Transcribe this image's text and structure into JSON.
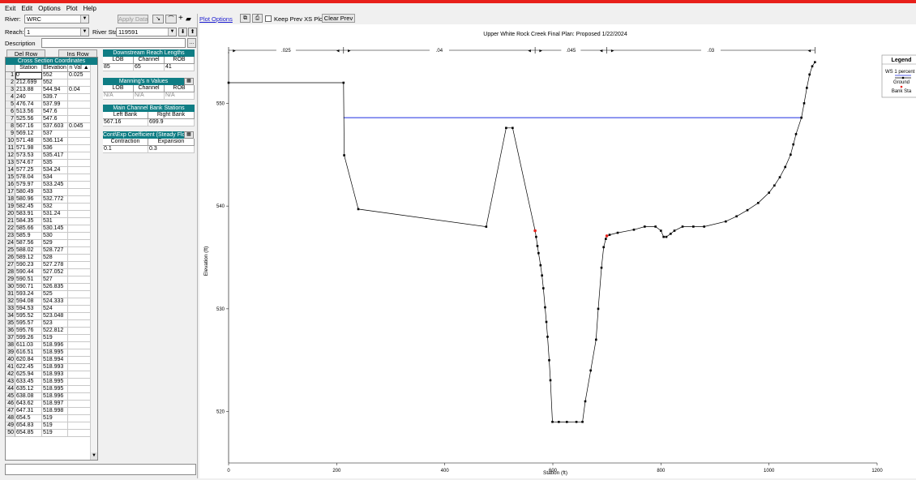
{
  "menu": [
    "Exit",
    "Edit",
    "Options",
    "Plot",
    "Help"
  ],
  "left": {
    "river_label": "River:",
    "river_value": "WRC",
    "apply_label": "Apply Data",
    "reach_label": "Reach:",
    "reach_value": "1",
    "rs_label": "River Sta.:",
    "rs_value": "119591",
    "desc_label": "Description",
    "del_row": "Del Row",
    "ins_row": "Ins Row",
    "xs_title": "Cross Section Coordinates",
    "xs_headers": [
      "Station",
      "Elevation",
      "n Val"
    ],
    "downstream_title": "Downstream Reach Lengths",
    "lob": "LOB",
    "channel": "Channel",
    "rob": "ROB",
    "reach_lengths": [
      "85",
      "65",
      "41"
    ],
    "manning_title": "Manning's n Values",
    "manning_values": [
      "N/A",
      "N/A",
      "N/A"
    ],
    "bank_title": "Main Channel Bank Stations",
    "left_bank_label": "Left Bank",
    "right_bank_label": "Right Bank",
    "left_bank": "567.16",
    "right_bank": "699.9",
    "coef_title": "Cont\\Exp Coefficient (Steady Flow)",
    "contraction_label": "Contraction",
    "expansion_label": "Expansion",
    "contraction": "0.1",
    "expansion": "0.3"
  },
  "xs_rows": [
    [
      "1",
      "0",
      "552",
      "0.025"
    ],
    [
      "2",
      "212.699",
      "552",
      ""
    ],
    [
      "3",
      "213.88",
      "544.94",
      "0.04"
    ],
    [
      "4",
      "240",
      "539.7",
      ""
    ],
    [
      "5",
      "476.74",
      "537.99",
      ""
    ],
    [
      "6",
      "513.56",
      "547.6",
      ""
    ],
    [
      "7",
      "525.56",
      "547.6",
      ""
    ],
    [
      "8",
      "567.16",
      "537.603",
      "0.045"
    ],
    [
      "9",
      "569.12",
      "537",
      ""
    ],
    [
      "10",
      "571.48",
      "536.114",
      ""
    ],
    [
      "11",
      "571.98",
      "536",
      ""
    ],
    [
      "12",
      "573.53",
      "535.417",
      ""
    ],
    [
      "13",
      "574.67",
      "535",
      ""
    ],
    [
      "14",
      "577.25",
      "534.24",
      ""
    ],
    [
      "15",
      "578.04",
      "534",
      ""
    ],
    [
      "16",
      "579.97",
      "533.245",
      ""
    ],
    [
      "17",
      "580.49",
      "533",
      ""
    ],
    [
      "18",
      "580.96",
      "532.772",
      ""
    ],
    [
      "19",
      "582.45",
      "532",
      ""
    ],
    [
      "20",
      "583.91",
      "531.24",
      ""
    ],
    [
      "21",
      "584.35",
      "531",
      ""
    ],
    [
      "22",
      "585.66",
      "530.145",
      ""
    ],
    [
      "23",
      "585.9",
      "530",
      ""
    ],
    [
      "24",
      "587.56",
      "529",
      ""
    ],
    [
      "25",
      "588.02",
      "528.727",
      ""
    ],
    [
      "26",
      "589.12",
      "528",
      ""
    ],
    [
      "27",
      "590.23",
      "527.278",
      ""
    ],
    [
      "28",
      "590.44",
      "527.052",
      ""
    ],
    [
      "29",
      "590.51",
      "527",
      ""
    ],
    [
      "30",
      "590.71",
      "526.835",
      ""
    ],
    [
      "31",
      "593.24",
      "525",
      ""
    ],
    [
      "32",
      "594.08",
      "524.333",
      ""
    ],
    [
      "33",
      "594.53",
      "524",
      ""
    ],
    [
      "34",
      "595.52",
      "523.048",
      ""
    ],
    [
      "35",
      "595.57",
      "523",
      ""
    ],
    [
      "36",
      "595.76",
      "522.812",
      ""
    ],
    [
      "37",
      "599.26",
      "519",
      ""
    ],
    [
      "38",
      "611.03",
      "518.996",
      ""
    ],
    [
      "39",
      "616.51",
      "518.995",
      ""
    ],
    [
      "40",
      "620.84",
      "518.994",
      ""
    ],
    [
      "41",
      "622.45",
      "518.993",
      ""
    ],
    [
      "42",
      "625.94",
      "518.993",
      ""
    ],
    [
      "43",
      "633.45",
      "518.995",
      ""
    ],
    [
      "44",
      "635.12",
      "518.995",
      ""
    ],
    [
      "45",
      "638.08",
      "518.996",
      ""
    ],
    [
      "46",
      "643.62",
      "518.997",
      ""
    ],
    [
      "47",
      "647.31",
      "518.998",
      ""
    ],
    [
      "48",
      "654.5",
      "519",
      ""
    ],
    [
      "49",
      "654.83",
      "519",
      ""
    ],
    [
      "50",
      "654.85",
      "519",
      ""
    ]
  ],
  "toolbar": {
    "plot_options": "Plot Options",
    "keep_prev": "Keep Prev XS Plots",
    "clear_prev": "Clear Prev"
  },
  "plot": {
    "title": "Upper White Rock Creek Final     Plan: Proposed     1/22/2024",
    "xlabel": "Station (ft)",
    "ylabel": "Elevation (ft)",
    "legend_title": "Legend",
    "legend_items": [
      "WS 1 percent",
      "Ground",
      "Bank Sta"
    ],
    "n_labels": [
      ".025",
      ".04",
      ".045",
      ".03"
    ],
    "colors": {
      "ws": "#1e2ee0",
      "ground": "#000000",
      "bank": "#e8201a"
    }
  },
  "chart_data": {
    "type": "line",
    "title": "Upper White Rock Creek Final     Plan: Proposed     1/22/2024",
    "xlabel": "Station (ft)",
    "ylabel": "Elevation (ft)",
    "xlim": [
      0,
      1200
    ],
    "ylim": [
      515,
      555
    ],
    "xticks": [
      0,
      200,
      400,
      600,
      800,
      1000,
      1200
    ],
    "yticks": [
      520,
      530,
      540,
      550
    ],
    "n_breaks": [
      0,
      212.699,
      567.16,
      699.9,
      1085
    ],
    "n_values": [
      ".025",
      ".04",
      ".045",
      ".03"
    ],
    "water_surface": {
      "name": "WS 1 percent",
      "elevation": 548.6,
      "x": [
        212.699,
        1060
      ]
    },
    "bank_stations": [
      [
        567.16,
        537.603
      ],
      [
        699.9,
        537.1
      ]
    ],
    "ground": {
      "name": "Ground",
      "x": [
        0,
        212.699,
        213.88,
        240,
        476.74,
        513.56,
        525.56,
        567.16,
        569.12,
        571.48,
        573.53,
        577.25,
        579.97,
        582.45,
        585.66,
        588.02,
        590.23,
        593.24,
        595.52,
        599.26,
        611.03,
        625.94,
        643.62,
        654.85,
        660,
        670,
        680,
        684,
        690,
        694,
        698,
        699.9,
        705,
        720,
        750,
        770,
        790,
        800,
        805,
        810,
        818,
        825,
        840,
        860,
        880,
        920,
        940,
        960,
        980,
        1000,
        1010,
        1020,
        1030,
        1040,
        1045,
        1050,
        1060,
        1065,
        1070,
        1075,
        1080,
        1085
      ],
      "y": [
        552,
        552,
        544.94,
        539.7,
        537.99,
        547.6,
        547.6,
        537.603,
        537,
        536.114,
        535.417,
        534.24,
        533.245,
        532,
        530.145,
        528.727,
        527.278,
        525,
        523.048,
        519,
        518.996,
        518.993,
        518.997,
        519,
        521,
        524,
        527,
        530,
        534,
        536,
        536.8,
        537.1,
        537.2,
        537.4,
        537.7,
        538,
        538,
        537.6,
        537,
        537,
        537.3,
        537.6,
        538,
        538,
        538,
        538.5,
        539,
        539.6,
        540.3,
        541.3,
        542,
        542.8,
        543.8,
        545,
        546,
        547,
        548.6,
        550,
        551.5,
        552.8,
        553.6,
        554
      ]
    }
  }
}
